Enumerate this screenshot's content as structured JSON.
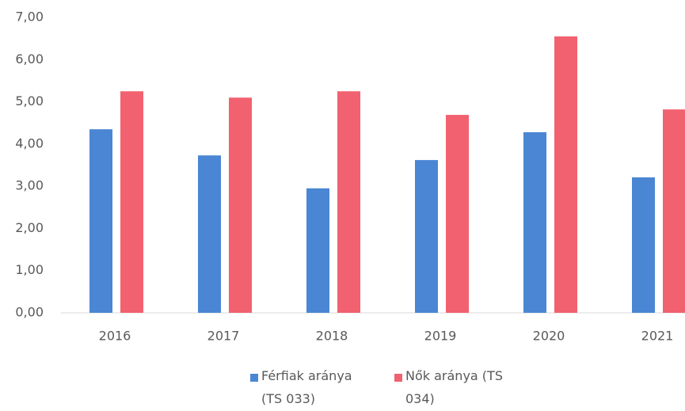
{
  "chart_data": {
    "type": "bar",
    "categories": [
      "2016",
      "2017",
      "2018",
      "2019",
      "2020",
      "2021"
    ],
    "series": [
      {
        "name": "Férfiak aránya (TS 033)",
        "color": "#4a86d4",
        "values": [
          4.35,
          3.73,
          2.95,
          3.62,
          4.28,
          3.21
        ]
      },
      {
        "name": "Nők aránya (TS 034)",
        "color": "#f2616f",
        "values": [
          5.25,
          5.1,
          5.25,
          4.69,
          6.55,
          4.82
        ]
      }
    ],
    "ylim": [
      0,
      7
    ],
    "yticks": [
      {
        "value": 0,
        "label": "0,00"
      },
      {
        "value": 1,
        "label": "1,00"
      },
      {
        "value": 2,
        "label": "2,00"
      },
      {
        "value": 3,
        "label": "3,00"
      },
      {
        "value": 4,
        "label": "4,00"
      },
      {
        "value": 5,
        "label": "5,00"
      },
      {
        "value": 6,
        "label": "6,00"
      },
      {
        "value": 7,
        "label": "7,00"
      }
    ],
    "grid": false,
    "legend": "bottom"
  }
}
